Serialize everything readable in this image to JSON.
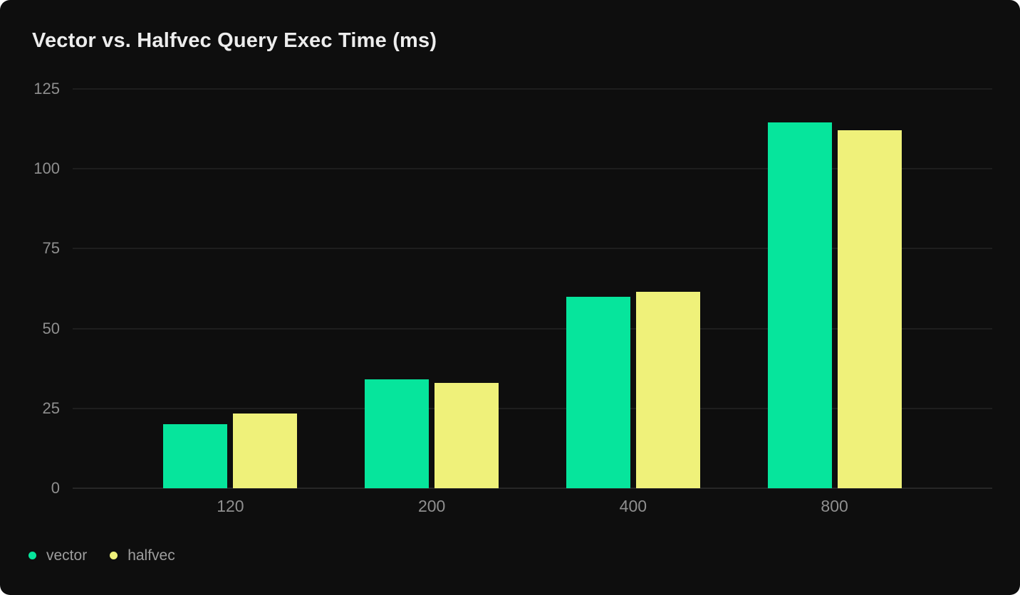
{
  "header": {
    "title": "Vector vs. Halfvec Query Exec Time (ms)"
  },
  "colors": {
    "page_background": "#ffffff",
    "card_background": "#0e0e0e",
    "grid": "#2e2e2e",
    "axis_baseline": "#3d3d3d",
    "tick_text": "#8f8f8f",
    "legend_text": "#9e9e9e",
    "title_text": "#ededed",
    "vector": "#06e59c",
    "halfvec": "#eff17a"
  },
  "chart_data": {
    "type": "bar",
    "title": "Vector vs. Halfvec Query Exec Time (ms)",
    "categories": [
      "120",
      "200",
      "400",
      "800"
    ],
    "series": [
      {
        "name": "vector",
        "color": "#06e59c",
        "values": [
          20,
          34,
          60,
          114.5
        ]
      },
      {
        "name": "halfvec",
        "color": "#eff17a",
        "values": [
          23.5,
          33,
          61.5,
          112
        ]
      }
    ],
    "xlabel": "",
    "ylabel": "",
    "ylim": [
      0,
      125
    ],
    "yticks": [
      0,
      25,
      50,
      75,
      100,
      125
    ],
    "grid": "horizontal-only",
    "legend_position": "bottom-left",
    "legend": [
      "vector",
      "halfvec"
    ]
  }
}
